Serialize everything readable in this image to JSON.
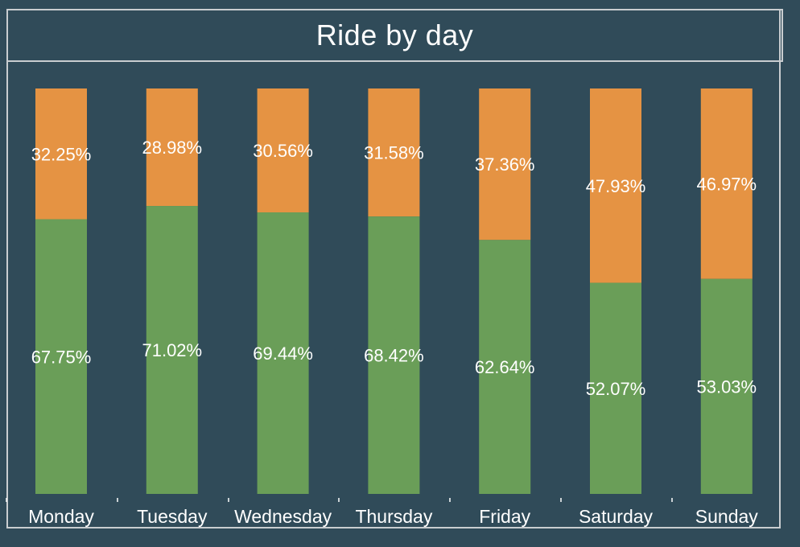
{
  "chart_data": {
    "type": "bar",
    "stacked": true,
    "normalized_percent": true,
    "title": "Ride by day",
    "categories": [
      "Monday",
      "Tuesday",
      "Wednesday",
      "Thursday",
      "Friday",
      "Saturday",
      "Sunday"
    ],
    "series": [
      {
        "values": [
          67.75,
          71.02,
          69.44,
          68.42,
          62.64,
          52.07,
          53.03
        ],
        "labels": [
          "67.75%",
          "71.02%",
          "69.44%",
          "68.42%",
          "62.64%",
          "52.07%",
          "53.03%"
        ],
        "color": "#6a9e58"
      },
      {
        "values": [
          32.25,
          28.98,
          30.56,
          31.58,
          37.36,
          47.93,
          46.97
        ],
        "labels": [
          "32.25%",
          "28.98%",
          "30.56%",
          "31.58%",
          "37.36%",
          "47.93%",
          "46.97%"
        ],
        "color": "#e59343"
      }
    ],
    "ylim": [
      0,
      100
    ],
    "grid": false,
    "legend": "none"
  },
  "colors": {
    "background": "#304b59",
    "border": "#c9cdd0",
    "text": "#ffffff"
  }
}
